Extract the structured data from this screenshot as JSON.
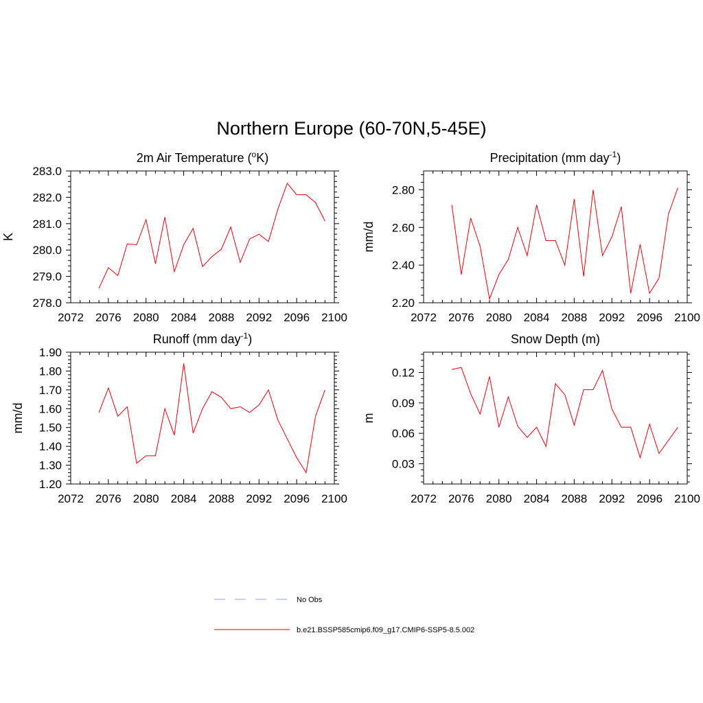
{
  "page_title": "Northern Europe (60-70N,5-45E)",
  "colors": {
    "series": "#e8000b",
    "obs": "#9999ff",
    "axis": "#000000"
  },
  "legend": {
    "entries": [
      {
        "label": "No Obs",
        "style": "dashed",
        "color": "#9999ff"
      },
      {
        "label": "b.e21.BSSP585cmip6.f09_g17.CMIP6-SSP5-8.5.002",
        "style": "solid",
        "color": "#e8000b"
      }
    ]
  },
  "chart_data": [
    {
      "type": "line",
      "title": "2m Air Temperature (",
      "title_sup": "o",
      "title_after": "K)",
      "ylabel": "K",
      "xlim": [
        2072,
        2100
      ],
      "ylim": [
        278.0,
        283.0
      ],
      "xticks": [
        "2072",
        "2076",
        "2080",
        "2084",
        "2088",
        "2092",
        "2096",
        "2100"
      ],
      "yticks": [
        "278.0",
        "279.0",
        "280.0",
        "281.0",
        "282.0",
        "283.0"
      ],
      "x": [
        2075,
        2076,
        2077,
        2078,
        2079,
        2080,
        2081,
        2082,
        2083,
        2084,
        2085,
        2086,
        2087,
        2088,
        2089,
        2090,
        2091,
        2092,
        2093,
        2094,
        2095,
        2096,
        2097,
        2098,
        2099
      ],
      "series": [
        {
          "values": [
            278.55,
            279.33,
            279.03,
            280.23,
            280.2,
            281.15,
            279.48,
            281.25,
            279.18,
            280.2,
            280.82,
            279.37,
            279.75,
            280.03,
            280.87,
            279.53,
            280.42,
            280.6,
            280.32,
            281.55,
            282.53,
            282.1,
            282.1,
            281.8,
            281.1
          ]
        }
      ]
    },
    {
      "type": "line",
      "title": "Precipitation (mm day",
      "title_sup": "-1",
      "title_after": ")",
      "ylabel": "mm/d",
      "xlim": [
        2072,
        2100
      ],
      "ylim": [
        2.2,
        2.9
      ],
      "xticks": [
        "2072",
        "2076",
        "2080",
        "2084",
        "2088",
        "2092",
        "2096",
        "2100"
      ],
      "yticks": [
        "2.20",
        "2.40",
        "2.60",
        "2.80"
      ],
      "x": [
        2075,
        2076,
        2077,
        2078,
        2079,
        2080,
        2081,
        2082,
        2083,
        2084,
        2085,
        2086,
        2087,
        2088,
        2089,
        2090,
        2091,
        2092,
        2093,
        2094,
        2095,
        2096,
        2097,
        2098,
        2099
      ],
      "series": [
        {
          "values": [
            2.72,
            2.35,
            2.65,
            2.5,
            2.22,
            2.35,
            2.43,
            2.6,
            2.45,
            2.72,
            2.53,
            2.53,
            2.4,
            2.75,
            2.34,
            2.8,
            2.45,
            2.55,
            2.71,
            2.25,
            2.51,
            2.25,
            2.33,
            2.67,
            2.81
          ]
        }
      ]
    },
    {
      "type": "line",
      "title": "Runoff (mm day",
      "title_sup": "-1",
      "title_after": ")",
      "ylabel": "mm/d",
      "xlim": [
        2072,
        2100
      ],
      "ylim": [
        1.2,
        1.9
      ],
      "xticks": [
        "2072",
        "2076",
        "2080",
        "2084",
        "2088",
        "2092",
        "2096",
        "2100"
      ],
      "yticks": [
        "1.20",
        "1.30",
        "1.40",
        "1.50",
        "1.60",
        "1.70",
        "1.80",
        "1.90"
      ],
      "x": [
        2075,
        2076,
        2077,
        2078,
        2079,
        2080,
        2081,
        2082,
        2083,
        2084,
        2085,
        2086,
        2087,
        2088,
        2089,
        2090,
        2091,
        2092,
        2093,
        2094,
        2095,
        2096,
        2097,
        2098,
        2099
      ],
      "series": [
        {
          "values": [
            1.58,
            1.71,
            1.56,
            1.61,
            1.31,
            1.35,
            1.35,
            1.6,
            1.46,
            1.84,
            1.47,
            1.6,
            1.69,
            1.66,
            1.6,
            1.61,
            1.58,
            1.62,
            1.7,
            1.54,
            1.44,
            1.34,
            1.26,
            1.56,
            1.7
          ]
        }
      ]
    },
    {
      "type": "line",
      "title": "Snow Depth (m)",
      "title_sup": "",
      "title_after": "",
      "ylabel": "m",
      "xlim": [
        2072,
        2100
      ],
      "ylim": [
        0.01,
        0.14
      ],
      "xticks": [
        "2072",
        "2076",
        "2080",
        "2084",
        "2088",
        "2092",
        "2096",
        "2100"
      ],
      "yticks": [
        "0.03",
        "0.06",
        "0.09",
        "0.12"
      ],
      "x": [
        2075,
        2076,
        2077,
        2078,
        2079,
        2080,
        2081,
        2082,
        2083,
        2084,
        2085,
        2086,
        2087,
        2088,
        2089,
        2090,
        2091,
        2092,
        2093,
        2094,
        2095,
        2096,
        2097,
        2098,
        2099
      ],
      "series": [
        {
          "values": [
            0.123,
            0.125,
            0.099,
            0.079,
            0.116,
            0.066,
            0.096,
            0.067,
            0.056,
            0.066,
            0.047,
            0.109,
            0.098,
            0.068,
            0.103,
            0.103,
            0.122,
            0.084,
            0.066,
            0.066,
            0.036,
            0.069,
            0.04,
            0.053,
            0.066
          ]
        }
      ]
    }
  ]
}
